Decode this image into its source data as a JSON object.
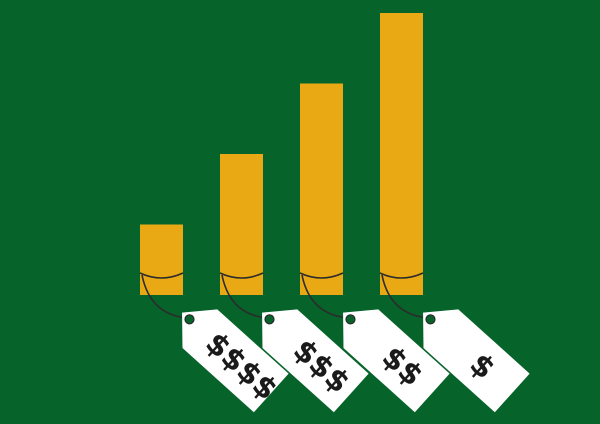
{
  "colors": {
    "background": "#066329",
    "bar": "#E8A915",
    "tag": "#FFFFFF",
    "string": "#2b2b2b",
    "text": "#1a1a1a"
  },
  "bars": [
    {
      "name": "bar-1",
      "relative_height": 0.25
    },
    {
      "name": "bar-2",
      "relative_height": 0.5
    },
    {
      "name": "bar-3",
      "relative_height": 0.75
    },
    {
      "name": "bar-4",
      "relative_height": 1.0
    }
  ],
  "tags": [
    {
      "label": "$$$$"
    },
    {
      "label": "$$$"
    },
    {
      "label": "$$"
    },
    {
      "label": "$"
    }
  ]
}
